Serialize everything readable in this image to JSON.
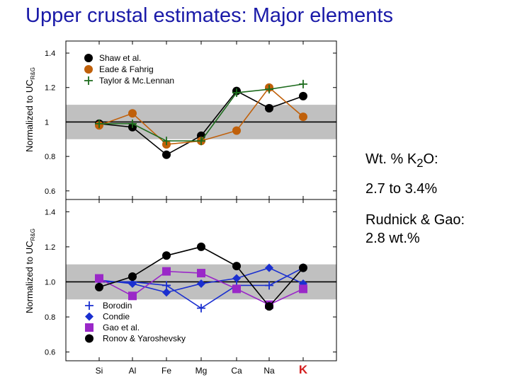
{
  "slide": {
    "title": "Upper crustal estimates: Major elements",
    "note_k2o_prefix": "Wt. % K",
    "note_k2o_sub": "2",
    "note_k2o_suffix": "O:",
    "note_range": "2.7 to 3.4%",
    "note_rudnick_line1": "Rudnick & Gao:",
    "note_rudnick_line2": "2.8 wt.%"
  },
  "chart_data": [
    {
      "type": "line",
      "panel": "top",
      "ylabel_main": "Normalized to UC",
      "ylabel_sub": "R&G",
      "categories": [
        "Si",
        "Al",
        "Fe",
        "Mg",
        "Ca",
        "Na",
        "K"
      ],
      "yticks": [
        0.6,
        0.8,
        1,
        1.2,
        1.4
      ],
      "ytick_labels": [
        "0.6",
        "0.8",
        "1",
        "1.2",
        "1.4"
      ],
      "ylim": [
        0.55,
        1.47
      ],
      "reference_line": 1.0,
      "shaded_band": [
        0.9,
        1.1
      ],
      "series": [
        {
          "name": "Shaw et al.",
          "marker": "circle",
          "color": "#000000",
          "values": [
            0.99,
            0.97,
            0.81,
            0.92,
            1.18,
            1.08,
            1.15
          ]
        },
        {
          "name": "Eade & Fahrig",
          "marker": "circle",
          "color": "#c0600a",
          "values": [
            0.98,
            1.05,
            0.87,
            0.89,
            0.95,
            1.2,
            1.03
          ]
        },
        {
          "name": "Taylor & Mc.Lennan",
          "marker": "plus",
          "color": "#1d6b1d",
          "values": [
            0.99,
            0.99,
            0.89,
            0.89,
            1.17,
            1.19,
            1.22
          ]
        }
      ]
    },
    {
      "type": "line",
      "panel": "bottom",
      "ylabel_main": "Normalized to UC",
      "ylabel_sub": "R&G",
      "categories": [
        "Si",
        "Al",
        "Fe",
        "Mg",
        "Ca",
        "Na",
        "K"
      ],
      "yticks": [
        0.6,
        0.8,
        1.0,
        1.2,
        1.4
      ],
      "ytick_labels": [
        "0.6",
        "0.8",
        "1.0",
        "1.2",
        "1.4"
      ],
      "ylim": [
        0.55,
        1.47
      ],
      "reference_line": 1.0,
      "shaded_band": [
        0.9,
        1.1
      ],
      "highlight_category": "K",
      "highlight_color": "#d42020",
      "series": [
        {
          "name": "Borodin",
          "marker": "plus",
          "color": "#1a2fd0",
          "values": [
            1.0,
            1.0,
            0.98,
            0.85,
            0.98,
            0.98,
            1.08
          ]
        },
        {
          "name": "Condie",
          "marker": "diamond",
          "color": "#1a2fd0",
          "values": [
            1.01,
            0.99,
            0.94,
            0.99,
            1.02,
            1.08,
            0.99
          ]
        },
        {
          "name": "Gao et al.",
          "marker": "square",
          "color": "#9a28c8",
          "values": [
            1.02,
            0.92,
            1.06,
            1.05,
            0.96,
            0.87,
            0.96
          ]
        },
        {
          "name": "Ronov & Yaroshevsky",
          "marker": "circle",
          "color": "#000000",
          "values": [
            0.97,
            1.03,
            1.15,
            1.2,
            1.09,
            0.86,
            1.08
          ]
        }
      ]
    }
  ]
}
